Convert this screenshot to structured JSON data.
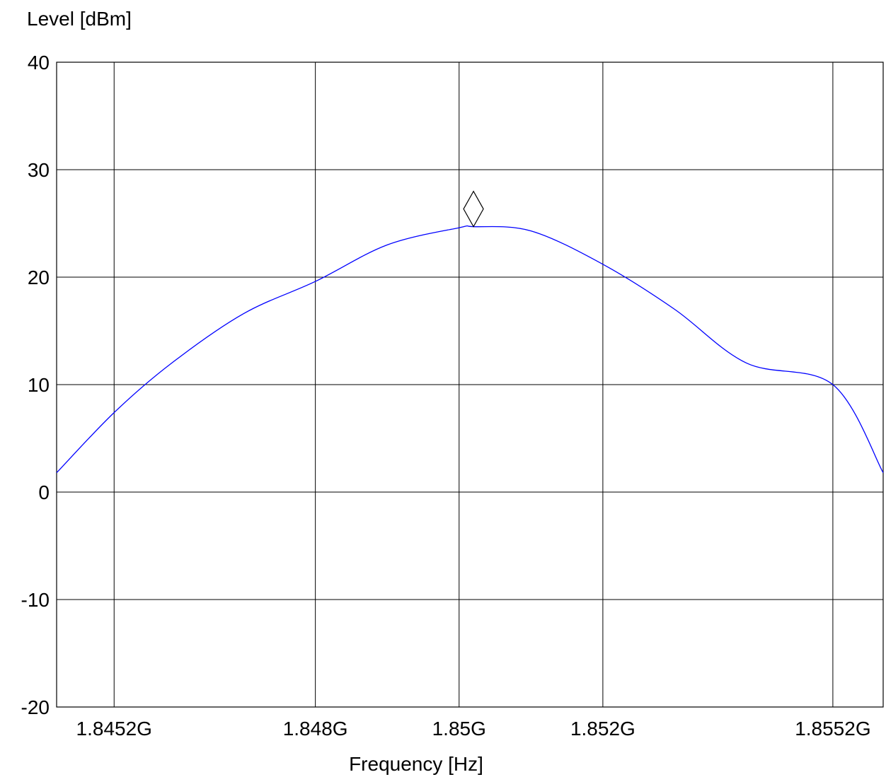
{
  "chart_data": {
    "type": "line",
    "title": "",
    "xlabel": "Frequency [Hz]",
    "ylabel": "Level [dBm]",
    "xlim": [
      1.8444,
      1.8559
    ],
    "ylim": [
      -20,
      40
    ],
    "x_unit": "GHz",
    "x_ticks": [
      {
        "value": 1.8452,
        "label": "1.8452G"
      },
      {
        "value": 1.848,
        "label": "1.848G"
      },
      {
        "value": 1.85,
        "label": "1.85G"
      },
      {
        "value": 1.852,
        "label": "1.852G"
      },
      {
        "value": 1.8552,
        "label": "1.8552G"
      }
    ],
    "y_ticks": [
      {
        "value": 40,
        "label": "40"
      },
      {
        "value": 30,
        "label": "30"
      },
      {
        "value": 20,
        "label": "20"
      },
      {
        "value": 10,
        "label": "10"
      },
      {
        "value": 0,
        "label": "0"
      },
      {
        "value": -10,
        "label": "-10"
      },
      {
        "value": -20,
        "label": "-20"
      }
    ],
    "grid": true,
    "series": [
      {
        "color": "#0000ff",
        "x": [
          1.8444,
          1.8452,
          1.846,
          1.847,
          1.848,
          1.849,
          1.85,
          1.8502,
          1.851,
          1.852,
          1.853,
          1.854,
          1.8552,
          1.8559
        ],
        "y": [
          1.8,
          7.4,
          12.0,
          16.6,
          19.6,
          23.0,
          24.6,
          24.7,
          24.3,
          21.2,
          17.0,
          12.0,
          10.0,
          1.8
        ]
      }
    ],
    "marker": {
      "shape": "diamond",
      "x": 1.8502,
      "y": 24.7
    }
  }
}
